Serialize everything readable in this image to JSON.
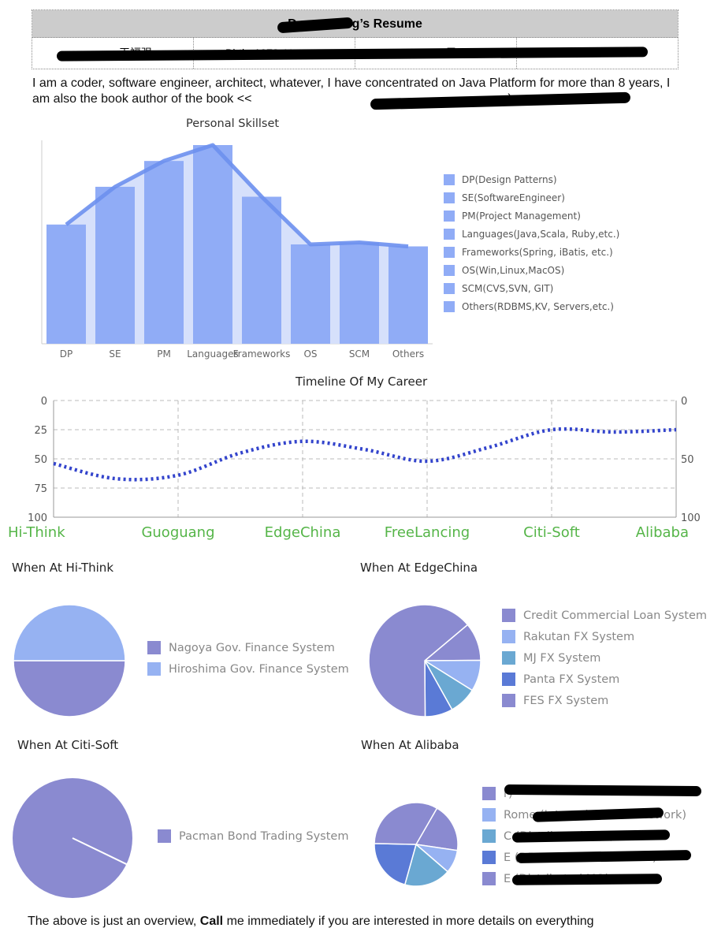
{
  "header": {
    "title_pre": "D",
    "title_post": "g’s Resume",
    "cells": [
      "王福强",
      "Birth: 1978-11-1",
      "Gender: 男",
      "Mobile: 186     752"
    ]
  },
  "intro": {
    "text_a": "I am a coder, software engineer, architect, whatever, I have concentrated on Java Platform for more than 8 years, I am also the book author of the book <<",
    "text_b": "e)"
  },
  "skills": {
    "chart_data": {
      "type": "bar",
      "title": "Personal Skillset",
      "categories": [
        "DP",
        "SE",
        "PM",
        "Languages",
        "Frameworks",
        "OS",
        "SCM",
        "Others"
      ],
      "values": [
        60,
        79,
        92,
        100,
        74,
        50,
        51,
        49
      ],
      "ylim": [
        0,
        100
      ],
      "line_overlay": true,
      "legend": [
        "DP(Design Patterns)",
        "SE(SoftwareEngineer)",
        "PM(Project Management)",
        "Languages(Java,Scala, Ruby,etc.)",
        "Frameworks(Spring, iBatis, etc.)",
        "OS(Win,Linux,MacOS)",
        "SCM(CVS,SVN, GIT)",
        "Others(RDBMS,KV, Servers,etc.)"
      ],
      "legend_position": "right"
    },
    "bar_color": "#90acf6",
    "line_color": "#6d90ee"
  },
  "timeline": {
    "chart_data": {
      "type": "line",
      "title": "Timeline Of My Career",
      "categories": [
        "Hi-Think",
        "Guoguang",
        "EdgeChina",
        "FreeLancing",
        "Citi-Soft",
        "Alibaba"
      ],
      "x": [
        0,
        0.5,
        1,
        1.5,
        2,
        2.5,
        3,
        3.5,
        4,
        4.5,
        5
      ],
      "y": [
        54,
        67,
        64,
        45,
        35,
        42,
        52,
        40,
        25,
        27,
        25
      ],
      "ylim": [
        0,
        100
      ],
      "y_inverted": true,
      "y_ticks_left": [
        "0",
        "25",
        "50",
        "75",
        "100"
      ],
      "y_ticks_right": [
        "0",
        "50",
        "100"
      ],
      "grid": true
    },
    "line_color": "#3344cc",
    "label_color": "#55b548"
  },
  "pies": [
    {
      "title": "When At Hi-Think",
      "chart_data": {
        "type": "pie",
        "labels": [
          "Nagoya Gov. Finance System",
          "Hiroshima Gov. Finance System"
        ],
        "values": [
          50,
          50
        ]
      }
    },
    {
      "title": "When At EdgeChina",
      "chart_data": {
        "type": "pie",
        "labels": [
          "Credit Commercial Loan System",
          "Rakutan FX System",
          "MJ FX System",
          "Panta FX System",
          "FES FX System"
        ],
        "values": [
          11,
          9,
          8,
          8,
          64
        ]
      }
    },
    {
      "title": "When At Citi-Soft",
      "chart_data": {
        "type": "pie",
        "labels": [
          "Pacman Bond Trading System"
        ],
        "values": [
          100
        ]
      }
    },
    {
      "title": "When At Alibaba",
      "chart_data": {
        "type": "pie",
        "labels": [
          "r)",
          "Rome (Internal Web framework)",
          "C (Distributed DAL)",
          "E (DB RealTime Event tter)",
          "E (Distributed MQ)"
        ],
        "values": [
          19,
          9,
          18,
          21,
          33
        ]
      }
    }
  ],
  "pie_colors": [
    "#8a8ad0",
    "#96b2f2",
    "#6aa8d2",
    "#5a7ad6",
    "#8a8ad0"
  ],
  "footer": {
    "pre": "The above is just an overview, ",
    "bold": "Call",
    "post": " me immediately if you are interested in more details on everything"
  }
}
